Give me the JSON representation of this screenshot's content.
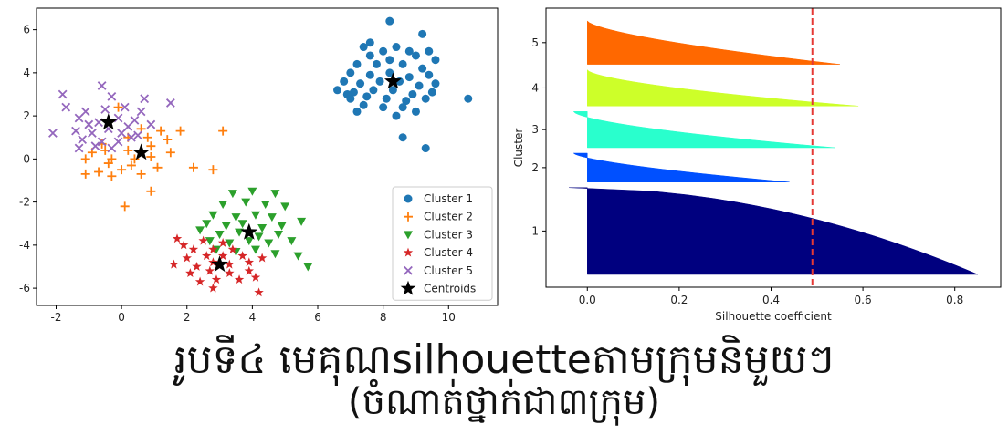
{
  "caption": {
    "line1": "រូបទី៤  មេគុណsilhouetteតាមក្រុមនិមួយៗ",
    "line2": "(ចំណាត់ថ្នាក់ជា៣ក្រុម)"
  },
  "chart_data": [
    {
      "type": "scatter",
      "xlim": [
        -2.6,
        11.5
      ],
      "ylim": [
        -6.8,
        7.0
      ],
      "xticks": [
        -2,
        0,
        2,
        4,
        6,
        8,
        10
      ],
      "yticks": [
        -6,
        -4,
        -2,
        0,
        2,
        4,
        6
      ],
      "legend_position": "lower-right",
      "series": [
        {
          "name": "Cluster 1",
          "color": "#1f77b4",
          "marker": "circle",
          "points": [
            [
              8.2,
              6.4
            ],
            [
              7.6,
              5.4
            ],
            [
              8.4,
              5.2
            ],
            [
              7.4,
              5.2
            ],
            [
              8.0,
              5.0
            ],
            [
              8.8,
              5.0
            ],
            [
              9.4,
              5.0
            ],
            [
              9.2,
              5.8
            ],
            [
              7.6,
              4.8
            ],
            [
              8.2,
              4.6
            ],
            [
              9.0,
              4.8
            ],
            [
              9.6,
              4.6
            ],
            [
              7.2,
              4.4
            ],
            [
              7.8,
              4.4
            ],
            [
              8.6,
              4.4
            ],
            [
              9.2,
              4.2
            ],
            [
              7.0,
              4.0
            ],
            [
              7.6,
              3.9
            ],
            [
              8.2,
              4.0
            ],
            [
              8.8,
              3.8
            ],
            [
              9.4,
              3.9
            ],
            [
              6.8,
              3.6
            ],
            [
              7.3,
              3.5
            ],
            [
              7.9,
              3.6
            ],
            [
              8.5,
              3.6
            ],
            [
              9.1,
              3.4
            ],
            [
              9.6,
              3.5
            ],
            [
              6.6,
              3.2
            ],
            [
              7.1,
              3.1
            ],
            [
              7.7,
              3.2
            ],
            [
              8.3,
              3.2
            ],
            [
              8.9,
              3.0
            ],
            [
              9.5,
              3.1
            ],
            [
              7.0,
              2.8
            ],
            [
              7.5,
              2.9
            ],
            [
              8.1,
              2.8
            ],
            [
              8.7,
              2.7
            ],
            [
              9.3,
              2.8
            ],
            [
              7.4,
              2.5
            ],
            [
              8.0,
              2.4
            ],
            [
              8.6,
              2.4
            ],
            [
              9.0,
              2.2
            ],
            [
              7.2,
              2.2
            ],
            [
              10.6,
              2.8
            ],
            [
              8.6,
              1.0
            ],
            [
              9.3,
              0.5
            ],
            [
              6.9,
              3.0
            ],
            [
              8.4,
              2.0
            ]
          ]
        },
        {
          "name": "Cluster 2",
          "color": "#ff7f0e",
          "marker": "plus",
          "points": [
            [
              -0.1,
              2.4
            ],
            [
              0.6,
              1.4
            ],
            [
              1.2,
              1.3
            ],
            [
              1.8,
              1.3
            ],
            [
              3.1,
              1.3
            ],
            [
              0.2,
              1.0
            ],
            [
              0.8,
              1.0
            ],
            [
              1.4,
              0.9
            ],
            [
              -0.6,
              0.7
            ],
            [
              0.2,
              0.4
            ],
            [
              0.9,
              0.6
            ],
            [
              1.5,
              0.3
            ],
            [
              -0.9,
              0.3
            ],
            [
              -0.3,
              0.0
            ],
            [
              0.4,
              0.0
            ],
            [
              0.9,
              0.1
            ],
            [
              -1.1,
              0.0
            ],
            [
              -0.4,
              -0.2
            ],
            [
              0.3,
              -0.3
            ],
            [
              1.1,
              -0.4
            ],
            [
              2.2,
              -0.4
            ],
            [
              2.8,
              -0.5
            ],
            [
              -0.7,
              -0.6
            ],
            [
              0.0,
              -0.5
            ],
            [
              0.6,
              -0.7
            ],
            [
              -1.1,
              -0.7
            ],
            [
              -0.3,
              -0.8
            ],
            [
              0.9,
              -1.5
            ],
            [
              0.1,
              -2.2
            ],
            [
              -0.5,
              0.4
            ]
          ]
        },
        {
          "name": "Cluster 3",
          "color": "#2ca02c",
          "marker": "triangle-down",
          "points": [
            [
              3.4,
              -1.6
            ],
            [
              4.0,
              -1.5
            ],
            [
              4.7,
              -1.6
            ],
            [
              3.1,
              -2.1
            ],
            [
              3.8,
              -2.0
            ],
            [
              4.4,
              -2.1
            ],
            [
              5.0,
              -2.2
            ],
            [
              2.8,
              -2.6
            ],
            [
              3.5,
              -2.7
            ],
            [
              4.1,
              -2.6
            ],
            [
              4.6,
              -2.7
            ],
            [
              2.6,
              -3.0
            ],
            [
              3.2,
              -3.1
            ],
            [
              3.7,
              -3.0
            ],
            [
              4.3,
              -3.2
            ],
            [
              4.9,
              -3.1
            ],
            [
              5.5,
              -2.9
            ],
            [
              2.4,
              -3.3
            ],
            [
              3.0,
              -3.5
            ],
            [
              3.6,
              -3.4
            ],
            [
              4.2,
              -3.6
            ],
            [
              4.8,
              -3.5
            ],
            [
              2.7,
              -3.8
            ],
            [
              3.3,
              -3.9
            ],
            [
              3.9,
              -3.8
            ],
            [
              4.5,
              -3.9
            ],
            [
              5.2,
              -3.8
            ],
            [
              2.9,
              -4.2
            ],
            [
              3.5,
              -4.3
            ],
            [
              4.1,
              -4.2
            ],
            [
              4.7,
              -4.4
            ],
            [
              5.4,
              -4.5
            ],
            [
              5.7,
              -5.0
            ]
          ]
        },
        {
          "name": "Cluster 4",
          "color": "#d62728",
          "marker": "star",
          "points": [
            [
              1.7,
              -3.7
            ],
            [
              1.9,
              -4.0
            ],
            [
              2.5,
              -3.8
            ],
            [
              3.1,
              -3.9
            ],
            [
              2.2,
              -4.2
            ],
            [
              2.8,
              -4.2
            ],
            [
              3.4,
              -4.2
            ],
            [
              2.0,
              -4.6
            ],
            [
              2.6,
              -4.5
            ],
            [
              3.1,
              -4.5
            ],
            [
              3.7,
              -4.5
            ],
            [
              1.6,
              -4.9
            ],
            [
              2.3,
              -5.0
            ],
            [
              2.8,
              -4.8
            ],
            [
              3.3,
              -4.9
            ],
            [
              3.9,
              -4.8
            ],
            [
              4.3,
              -4.6
            ],
            [
              2.1,
              -5.3
            ],
            [
              2.7,
              -5.2
            ],
            [
              3.3,
              -5.3
            ],
            [
              3.9,
              -5.2
            ],
            [
              2.4,
              -5.7
            ],
            [
              2.9,
              -5.6
            ],
            [
              3.6,
              -5.6
            ],
            [
              4.1,
              -5.5
            ],
            [
              2.8,
              -6.0
            ],
            [
              4.2,
              -6.2
            ]
          ]
        },
        {
          "name": "Cluster 5",
          "color": "#9467bd",
          "marker": "x",
          "points": [
            [
              -1.8,
              3.0
            ],
            [
              -0.6,
              3.4
            ],
            [
              -0.3,
              2.9
            ],
            [
              0.7,
              2.8
            ],
            [
              1.5,
              2.6
            ],
            [
              -1.7,
              2.4
            ],
            [
              -1.1,
              2.2
            ],
            [
              -0.5,
              2.3
            ],
            [
              0.1,
              2.4
            ],
            [
              0.6,
              2.2
            ],
            [
              -1.3,
              1.9
            ],
            [
              -0.7,
              1.7
            ],
            [
              -0.1,
              1.9
            ],
            [
              0.4,
              1.8
            ],
            [
              0.9,
              1.6
            ],
            [
              -2.1,
              1.2
            ],
            [
              -1.4,
              1.3
            ],
            [
              -0.9,
              1.2
            ],
            [
              -0.4,
              1.4
            ],
            [
              0.0,
              1.2
            ],
            [
              0.5,
              1.1
            ],
            [
              -1.2,
              0.9
            ],
            [
              -0.6,
              0.8
            ],
            [
              -0.1,
              0.8
            ],
            [
              0.3,
              1.0
            ],
            [
              -1.3,
              0.5
            ],
            [
              -0.8,
              0.6
            ],
            [
              -0.3,
              0.5
            ],
            [
              -1.0,
              1.6
            ],
            [
              0.2,
              1.5
            ]
          ]
        }
      ],
      "centroids": {
        "name": "Centroids",
        "color": "#000000",
        "marker": "star",
        "points": [
          [
            8.3,
            3.6
          ],
          [
            -0.4,
            1.7
          ],
          [
            0.6,
            0.3
          ],
          [
            3.9,
            -3.4
          ],
          [
            3.0,
            -4.9
          ]
        ]
      }
    },
    {
      "type": "silhouette",
      "xlabel": "Silhouette coefficient",
      "ylabel": "Cluster",
      "xlim": [
        -0.09,
        0.9
      ],
      "xticks": [
        0.0,
        0.2,
        0.4,
        0.6,
        0.8
      ],
      "average_silhouette": 0.49,
      "average_line_color": "#e53935",
      "clusters": [
        {
          "label": "1",
          "color": "#00007f",
          "count": 60,
          "max": 0.85,
          "min": -0.04,
          "shape": 0.5
        },
        {
          "label": "2",
          "color": "#0050ff",
          "count": 20,
          "max": 0.44,
          "min": -0.03,
          "shape": 1.5
        },
        {
          "label": "3",
          "color": "#29ffcd",
          "count": 25,
          "max": 0.54,
          "min": -0.03,
          "shape": 1.6
        },
        {
          "label": "4",
          "color": "#cdff29",
          "count": 25,
          "max": 0.59,
          "min": 0.0,
          "shape": 1.6
        },
        {
          "label": "5",
          "color": "#ff6800",
          "count": 30,
          "max": 0.55,
          "min": 0.0,
          "shape": 1.5
        }
      ]
    }
  ]
}
